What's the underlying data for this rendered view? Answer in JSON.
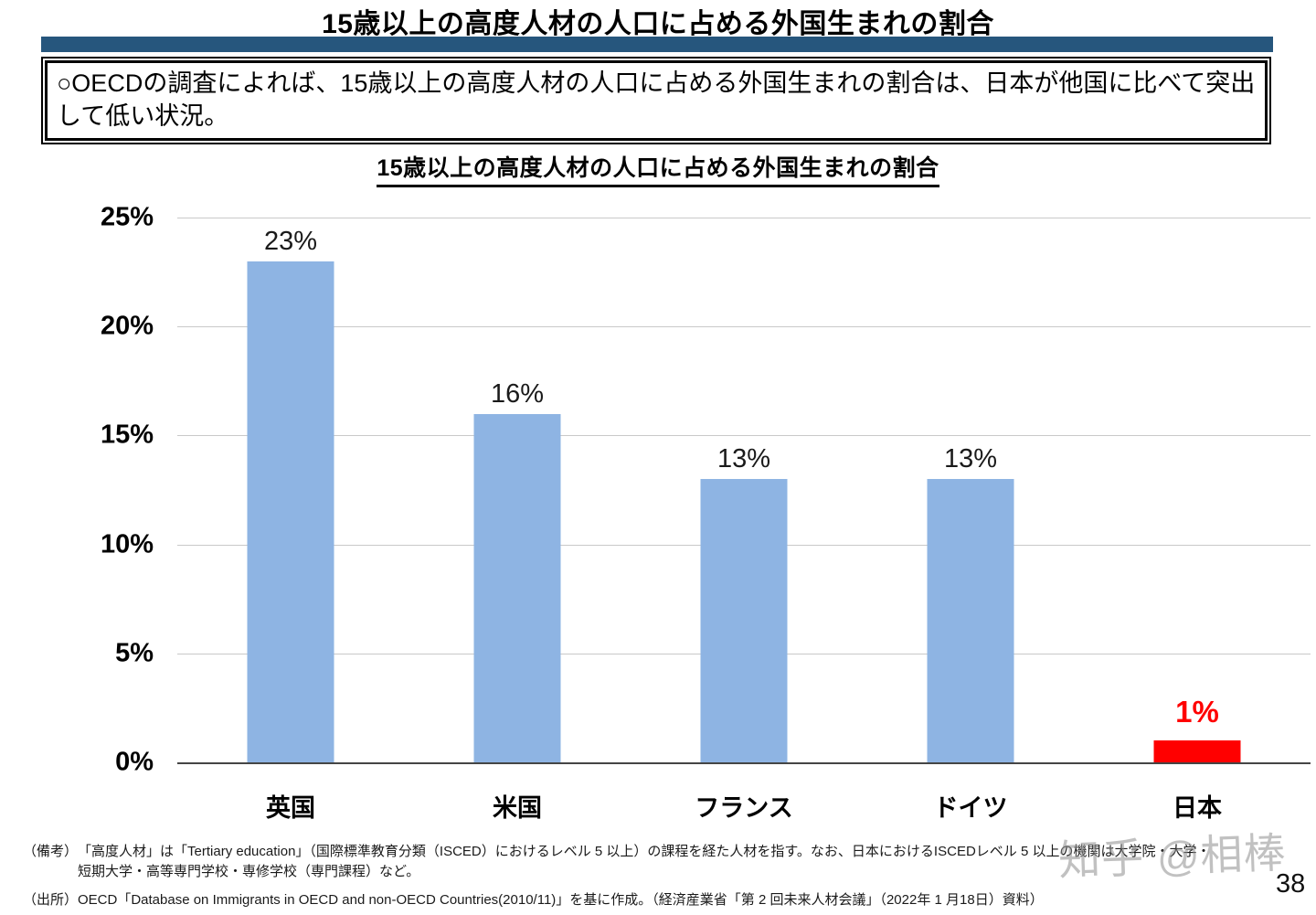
{
  "page": {
    "title": "15歳以上の高度人材の人口に占める外国生まれの割合",
    "page_number": "38",
    "watermark": "知乎 @相棒",
    "accent_bar_color": "#26567D"
  },
  "callout": {
    "text": "○OECDの調査によれば、15歳以上の高度人材の人口に占める外国生まれの割合は、日本が他国に比べて突出して低い状況。"
  },
  "chart_data": {
    "type": "bar",
    "title": "15歳以上の高度人材の人口に占める外国生まれの割合",
    "categories": [
      "英国",
      "米国",
      "フランス",
      "ドイツ",
      "日本"
    ],
    "values": [
      23,
      16,
      13,
      13,
      1
    ],
    "value_labels": [
      "23%",
      "16%",
      "13%",
      "13%",
      "1%"
    ],
    "bar_colors": [
      "#8EB4E3",
      "#8EB4E3",
      "#8EB4E3",
      "#8EB4E3",
      "#FF0000"
    ],
    "label_colors": [
      "#1A1A1A",
      "#1A1A1A",
      "#1A1A1A",
      "#1A1A1A",
      "#FF0000"
    ],
    "emphasis": [
      false,
      false,
      false,
      false,
      true
    ],
    "xlabel": "",
    "ylabel": "",
    "ylim": [
      0,
      25
    ],
    "yticks": [
      "25%",
      "20%",
      "15%",
      "10%",
      "5%",
      "0%"
    ],
    "ytick_values": [
      25,
      20,
      15,
      10,
      5,
      0
    ],
    "grid": true,
    "legend": false
  },
  "notes": {
    "note1_label": "（備考）",
    "note1_line1": "「高度人材」は「Tertiary education」（国際標準教育分類（ISCED）におけるレベル 5 以上）の課程を経た人材を指す。なお、日本におけるISCEDレベル 5 以上の機関は大学院・大学・",
    "note1_line2": "短期大学・高等専門学校・専修学校（専門課程）など。",
    "source": "（出所）OECD「Database on Immigrants in OECD and non-OECD Countries(2010/11)」を基に作成。（経済産業省「第 2 回未来人材会議」（2022年 1 月18日）資料）"
  }
}
